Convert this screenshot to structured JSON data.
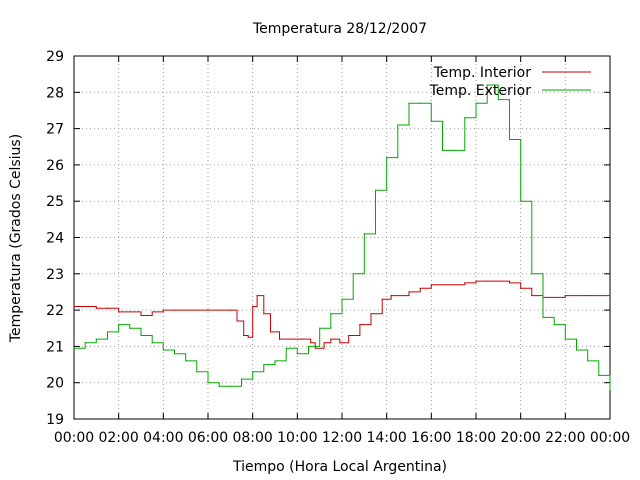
{
  "chart_data": {
    "type": "line",
    "title": "Temperatura 28/12/2007",
    "xlabel": "Tiempo (Hora Local Argentina)",
    "ylabel": "Temperatura (Grados Celsius)",
    "xlim": [
      0,
      24
    ],
    "ylim": [
      19,
      29
    ],
    "grid": true,
    "legend_position": "top-right",
    "x_ticks": [
      0,
      2,
      4,
      6,
      8,
      10,
      12,
      14,
      16,
      18,
      20,
      22,
      24
    ],
    "x_tick_labels": [
      "00:00",
      "02:00",
      "04:00",
      "06:00",
      "08:00",
      "10:00",
      "12:00",
      "14:00",
      "16:00",
      "18:00",
      "20:00",
      "22:00",
      "00:00"
    ],
    "y_ticks": [
      19,
      20,
      21,
      22,
      23,
      24,
      25,
      26,
      27,
      28,
      29
    ],
    "y_tick_labels": [
      "19",
      "20",
      "21",
      "22",
      "23",
      "24",
      "25",
      "26",
      "27",
      "28",
      "29"
    ],
    "series": [
      {
        "name": "Temp. Interior",
        "color": "#cc0000",
        "points": [
          [
            0,
            22.1
          ],
          [
            0.5,
            22.1
          ],
          [
            1,
            22.05
          ],
          [
            1.5,
            22.05
          ],
          [
            2,
            21.95
          ],
          [
            2.5,
            21.95
          ],
          [
            3,
            21.85
          ],
          [
            3.5,
            21.95
          ],
          [
            4,
            22.0
          ],
          [
            4.5,
            22.0
          ],
          [
            5,
            22.0
          ],
          [
            6,
            22.0
          ],
          [
            7,
            22.0
          ],
          [
            7.3,
            21.7
          ],
          [
            7.6,
            21.3
          ],
          [
            7.8,
            21.25
          ],
          [
            8.0,
            22.1
          ],
          [
            8.2,
            22.4
          ],
          [
            8.5,
            21.9
          ],
          [
            8.8,
            21.4
          ],
          [
            9.2,
            21.2
          ],
          [
            9.7,
            21.2
          ],
          [
            10.2,
            21.2
          ],
          [
            10.6,
            21.1
          ],
          [
            10.8,
            20.95
          ],
          [
            11.2,
            21.1
          ],
          [
            11.5,
            21.2
          ],
          [
            11.9,
            21.1
          ],
          [
            12.3,
            21.3
          ],
          [
            12.8,
            21.6
          ],
          [
            13.3,
            21.9
          ],
          [
            13.8,
            22.3
          ],
          [
            14.2,
            22.4
          ],
          [
            15,
            22.5
          ],
          [
            15.5,
            22.6
          ],
          [
            16,
            22.7
          ],
          [
            16.5,
            22.7
          ],
          [
            17,
            22.7
          ],
          [
            17.5,
            22.75
          ],
          [
            18,
            22.8
          ],
          [
            18.5,
            22.8
          ],
          [
            19,
            22.8
          ],
          [
            19.5,
            22.75
          ],
          [
            20,
            22.6
          ],
          [
            20.5,
            22.4
          ],
          [
            21,
            22.35
          ],
          [
            22,
            22.4
          ],
          [
            23,
            22.4
          ],
          [
            24,
            22.4
          ]
        ]
      },
      {
        "name": "Temp. Exterior",
        "color": "#00aa00",
        "points": [
          [
            0,
            20.95
          ],
          [
            0.5,
            21.1
          ],
          [
            1,
            21.2
          ],
          [
            1.5,
            21.4
          ],
          [
            2,
            21.6
          ],
          [
            2.5,
            21.5
          ],
          [
            3,
            21.3
          ],
          [
            3.5,
            21.1
          ],
          [
            4,
            20.9
          ],
          [
            4.5,
            20.8
          ],
          [
            5,
            20.6
          ],
          [
            5.5,
            20.3
          ],
          [
            6,
            20.0
          ],
          [
            6.5,
            19.9
          ],
          [
            7,
            19.9
          ],
          [
            7.5,
            20.1
          ],
          [
            8,
            20.3
          ],
          [
            8.5,
            20.5
          ],
          [
            9,
            20.6
          ],
          [
            9.5,
            20.95
          ],
          [
            10,
            20.8
          ],
          [
            10.5,
            21.0
          ],
          [
            11,
            21.5
          ],
          [
            11.5,
            21.9
          ],
          [
            12,
            22.3
          ],
          [
            12.5,
            23.0
          ],
          [
            13,
            24.1
          ],
          [
            13.5,
            25.3
          ],
          [
            14,
            26.2
          ],
          [
            14.5,
            27.1
          ],
          [
            15,
            27.7
          ],
          [
            15.5,
            27.7
          ],
          [
            16,
            27.2
          ],
          [
            16.5,
            26.4
          ],
          [
            17,
            26.4
          ],
          [
            17.5,
            27.3
          ],
          [
            18,
            27.7
          ],
          [
            18.5,
            28.2
          ],
          [
            19,
            27.8
          ],
          [
            19.5,
            26.7
          ],
          [
            20,
            25.0
          ],
          [
            20.5,
            23.0
          ],
          [
            21,
            21.8
          ],
          [
            21.5,
            21.6
          ],
          [
            22,
            21.2
          ],
          [
            22.5,
            20.9
          ],
          [
            23,
            20.6
          ],
          [
            23.5,
            20.2
          ],
          [
            24,
            19.8
          ]
        ]
      }
    ]
  }
}
